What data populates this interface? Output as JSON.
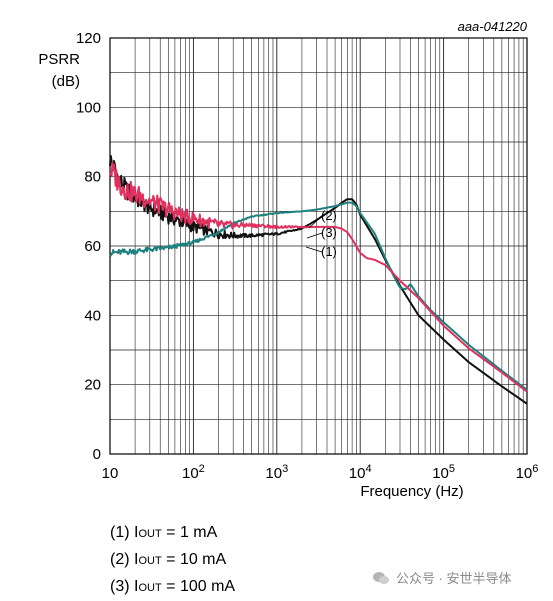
{
  "chart_data": {
    "type": "line",
    "figure_id": "aaa-041220",
    "xlabel": "Frequency (Hz)",
    "ylabel": [
      "PSRR",
      "(dB)"
    ],
    "x_scale": "log",
    "xlim": [
      10,
      1000000
    ],
    "ylim": [
      0,
      120
    ],
    "grid": true,
    "x_ticks": [
      {
        "value": 10,
        "base": "10",
        "exp": ""
      },
      {
        "value": 100,
        "base": "10",
        "exp": "2"
      },
      {
        "value": 1000,
        "base": "10",
        "exp": "3"
      },
      {
        "value": 10000,
        "base": "10",
        "exp": "4"
      },
      {
        "value": 100000,
        "base": "10",
        "exp": "5"
      },
      {
        "value": 1000000,
        "base": "10",
        "exp": "6"
      }
    ],
    "y_ticks": [
      0,
      20,
      40,
      60,
      80,
      100,
      120
    ],
    "series": [
      {
        "name": "(1)",
        "color": "#111111",
        "x": [
          10,
          11,
          13,
          16,
          20,
          30,
          50,
          80,
          100,
          200,
          300,
          500,
          1000,
          2000,
          3000,
          4000,
          5000,
          6000,
          7000,
          8000,
          9000,
          10000,
          15000,
          20000,
          30000,
          50000,
          100000,
          200000,
          500000,
          1000000
        ],
        "y": [
          85,
          83,
          79,
          76,
          74,
          71,
          68.5,
          66.5,
          65.5,
          63.5,
          63,
          63,
          63.5,
          65,
          67.5,
          69.5,
          71,
          72.5,
          73.5,
          73.5,
          72,
          69,
          62,
          56,
          48.5,
          40,
          33,
          26.5,
          19.5,
          14.5
        ]
      },
      {
        "name": "(2)",
        "color": "#1f8080",
        "x": [
          10,
          20,
          50,
          100,
          200,
          300,
          500,
          1000,
          2000,
          3000,
          5000,
          7000,
          8000,
          9000,
          10000,
          15000,
          20000,
          25000,
          30000,
          35000,
          40000,
          50000,
          70000,
          100000,
          200000,
          500000,
          1000000
        ],
        "y": [
          58,
          58.5,
          59.5,
          61,
          64,
          66.5,
          68.5,
          69.5,
          70,
          70.5,
          71.5,
          72.5,
          72.5,
          71.5,
          69.5,
          63.5,
          56.5,
          51.5,
          48,
          47.5,
          49,
          45.5,
          41.5,
          38,
          31.5,
          24,
          18.5
        ]
      },
      {
        "name": "(3)",
        "color": "#e0305e",
        "x": [
          10,
          11,
          13,
          16,
          20,
          30,
          50,
          80,
          100,
          200,
          300,
          500,
          1000,
          2000,
          3000,
          4000,
          5000,
          6000,
          7000,
          8000,
          10000,
          12000,
          15000,
          20000,
          30000,
          50000,
          100000,
          200000,
          500000,
          1000000
        ],
        "y": [
          82,
          81,
          78,
          76,
          75,
          73,
          70.5,
          68.5,
          68,
          66,
          66,
          66,
          65.5,
          65.5,
          65.5,
          65.5,
          65.5,
          65,
          64,
          62,
          58,
          56.5,
          56,
          54.5,
          50,
          45,
          37,
          30.5,
          23.5,
          18
        ]
      }
    ],
    "callouts": [
      "(2)",
      "(3)",
      "(1)"
    ]
  },
  "legend": [
    {
      "num": "(1)",
      "prefix": "I",
      "sub": "OUT",
      "value": " = 1 mA"
    },
    {
      "num": "(2)",
      "prefix": "I",
      "sub": "OUT",
      "value": " = 10 mA"
    },
    {
      "num": "(3)",
      "prefix": "I",
      "sub": "OUT",
      "value": " = 100 mA"
    }
  ],
  "watermark": "公众号 · 安世半导体"
}
